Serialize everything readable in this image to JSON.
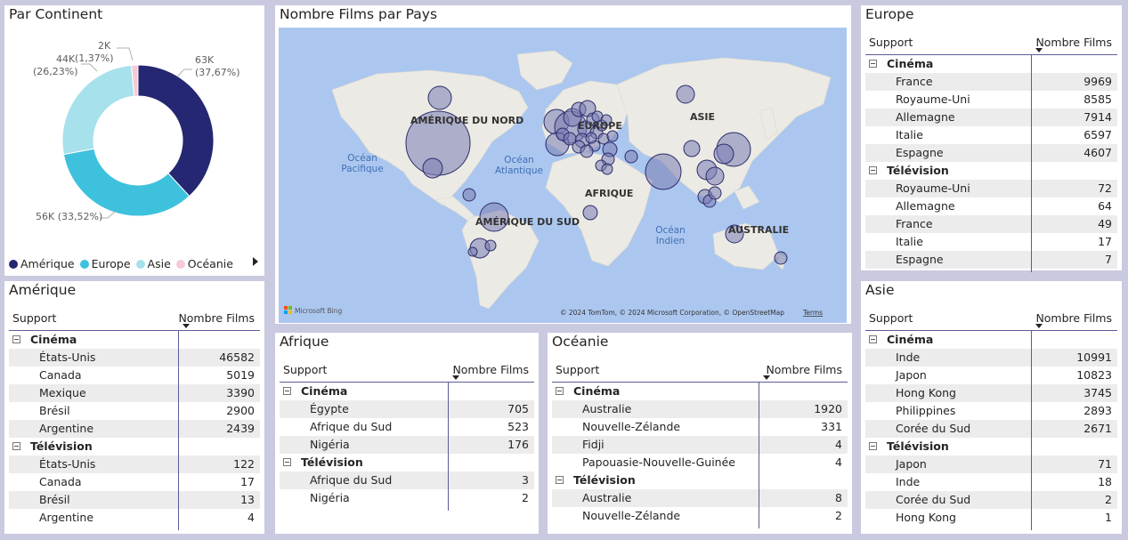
{
  "continent": {
    "title": "Par Continent",
    "slices": [
      {
        "name": "Amérique",
        "value": 63,
        "percent": 37.67,
        "color": "#252772",
        "label1": "63K",
        "label2": "(37,67%)"
      },
      {
        "name": "Europe",
        "value": 56,
        "percent": 33.52,
        "color": "#3ec1dd",
        "label1": "56K (33,52%)",
        "label2": ""
      },
      {
        "name": "Asie",
        "value": 44,
        "percent": 26.23,
        "color": "#a6e1ec",
        "label1": "44K",
        "label2": "(26,23%)"
      },
      {
        "name": "Océanie",
        "value": 2,
        "percent": 1.37,
        "color": "#f6cad6",
        "label1": "2K",
        "label2": "(1,37%)"
      }
    ]
  },
  "map": {
    "title": "Nombre Films par Pays",
    "labels": {
      "na": "AMÉRIQUE DU NORD",
      "sa": "AMÉRIQUE DU SUD",
      "eu": "EUROPE",
      "af": "AFRIQUE",
      "as": "ASIE",
      "au": "AUSTRALIE",
      "pac1": "Océan",
      "pac2": "Pacifique",
      "atl1": "Océan",
      "atl2": "Atlantique",
      "ind1": "Océan",
      "ind2": "Indien"
    },
    "logo": "Microsoft Bing",
    "copyright": "© 2024 TomTom, © 2024 Microsoft Corporation, © OpenStreetMap",
    "terms": "Terms"
  },
  "tables": {
    "europe": {
      "title": "Europe",
      "col1": "Support",
      "col2": "Nombre Films",
      "groups": [
        {
          "name": "Cinéma",
          "rows": [
            [
              "France",
              "9969"
            ],
            [
              "Royaume-Uni",
              "8585"
            ],
            [
              "Allemagne",
              "7914"
            ],
            [
              "Italie",
              "6597"
            ],
            [
              "Espagne",
              "4607"
            ]
          ]
        },
        {
          "name": "Télévision",
          "rows": [
            [
              "Royaume-Uni",
              "72"
            ],
            [
              "Allemagne",
              "64"
            ],
            [
              "France",
              "49"
            ],
            [
              "Italie",
              "17"
            ],
            [
              "Espagne",
              "7"
            ]
          ]
        }
      ]
    },
    "amerique": {
      "title": "Amérique",
      "col1": "Support",
      "col2": "Nombre Films",
      "groups": [
        {
          "name": "Cinéma",
          "rows": [
            [
              "États-Unis",
              "46582"
            ],
            [
              "Canada",
              "5019"
            ],
            [
              "Mexique",
              "3390"
            ],
            [
              "Brésil",
              "2900"
            ],
            [
              "Argentine",
              "2439"
            ]
          ]
        },
        {
          "name": "Télévision",
          "rows": [
            [
              "États-Unis",
              "122"
            ],
            [
              "Canada",
              "17"
            ],
            [
              "Brésil",
              "13"
            ],
            [
              "Argentine",
              "4"
            ]
          ]
        }
      ]
    },
    "afrique": {
      "title": "Afrique",
      "col1": "Support",
      "col2": "Nombre Films",
      "groups": [
        {
          "name": "Cinéma",
          "rows": [
            [
              "Égypte",
              "705"
            ],
            [
              "Afrique du Sud",
              "523"
            ],
            [
              "Nigéria",
              "176"
            ]
          ]
        },
        {
          "name": "Télévision",
          "rows": [
            [
              "Afrique du Sud",
              "3"
            ],
            [
              "Nigéria",
              "2"
            ]
          ]
        }
      ]
    },
    "oceanie": {
      "title": "Océanie",
      "col1": "Support",
      "col2": "Nombre Films",
      "groups": [
        {
          "name": "Cinéma",
          "rows": [
            [
              "Australie",
              "1920"
            ],
            [
              "Nouvelle-Zélande",
              "331"
            ],
            [
              "Fidji",
              "4"
            ],
            [
              "Papouasie-Nouvelle-Guinée",
              "4"
            ]
          ]
        },
        {
          "name": "Télévision",
          "rows": [
            [
              "Australie",
              "8"
            ],
            [
              "Nouvelle-Zélande",
              "2"
            ]
          ]
        }
      ]
    },
    "asie": {
      "title": "Asie",
      "col1": "Support",
      "col2": "Nombre Films",
      "groups": [
        {
          "name": "Cinéma",
          "rows": [
            [
              "Inde",
              "10991"
            ],
            [
              "Japon",
              "10823"
            ],
            [
              "Hong Kong",
              "3745"
            ],
            [
              "Philippines",
              "2893"
            ],
            [
              "Corée du Sud",
              "2671"
            ]
          ]
        },
        {
          "name": "Télévision",
          "rows": [
            [
              "Japon",
              "71"
            ],
            [
              "Inde",
              "18"
            ],
            [
              "Corée du Sud",
              "2"
            ],
            [
              "Hong Kong",
              "1"
            ]
          ]
        }
      ]
    }
  }
}
